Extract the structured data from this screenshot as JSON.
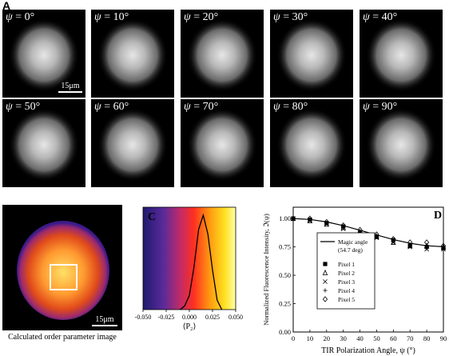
{
  "figure": {
    "panel_a": {
      "label": "A",
      "psi_symbol": "ψ",
      "angles": [
        "0°",
        "10°",
        "20°",
        "30°",
        "40°",
        "50°",
        "60°",
        "70°",
        "80°",
        "90°"
      ],
      "scale_bar": "15μm"
    },
    "panel_b": {
      "label": "B",
      "caption": "Calculated order parameter image",
      "scale_bar": "15μm"
    },
    "panel_c": {
      "label": "C",
      "xlabel": "⟨P₂⟩",
      "xticks": [
        "-0.050",
        "-0.025",
        "0.000",
        "0.025",
        "0.050"
      ]
    },
    "panel_d": {
      "label": "D",
      "xlabel": "TIR Polarization Angle, ψ (°)",
      "ylabel": "Normalized Fluorescence Intensity, ℑ(ψ)",
      "legend": {
        "line_label": "Magic angle",
        "line_label_2": "(54.7 deg)",
        "pixels": [
          "Pixel 1",
          "Pixel 2",
          "Pixel 3",
          "Pixel 4",
          "Pixel 5"
        ]
      }
    }
  },
  "chart_data": [
    {
      "type": "line",
      "panel": "C",
      "xlabel": "⟨P₂⟩",
      "xlim": [
        -0.05,
        0.05
      ],
      "xticks": [
        -0.05,
        -0.025,
        0.0,
        0.025,
        0.05
      ],
      "x": [
        -0.01,
        -0.005,
        0.0,
        0.005,
        0.01,
        0.015,
        0.02,
        0.025,
        0.03,
        0.035
      ],
      "values": [
        0.0,
        0.04,
        0.15,
        0.45,
        0.85,
        1.0,
        0.8,
        0.42,
        0.1,
        0.0
      ]
    },
    {
      "type": "scatter",
      "panel": "D",
      "xlabel": "TIR Polarization Angle, ψ (°)",
      "ylabel": "Normalized Fluorescence Intensity, ℑ(ψ)",
      "xlim": [
        0,
        90
      ],
      "ylim": [
        0.0,
        1.1
      ],
      "xticks": [
        0,
        10,
        20,
        30,
        40,
        50,
        60,
        70,
        80,
        90
      ],
      "yticks": [
        0.0,
        0.25,
        0.5,
        0.75,
        1.0
      ],
      "line": {
        "name": "Magic angle",
        "x": [
          0,
          10,
          20,
          30,
          40,
          50,
          60,
          70,
          80,
          90
        ],
        "y": [
          1.0,
          0.992,
          0.97,
          0.937,
          0.897,
          0.855,
          0.815,
          0.782,
          0.76,
          0.752
        ]
      },
      "series": [
        {
          "name": "Pixel 1",
          "marker": "square-filled",
          "x": [
            0,
            10,
            20,
            30,
            40,
            50,
            60,
            70,
            80,
            90
          ],
          "y": [
            1.0,
            0.99,
            0.96,
            0.93,
            0.87,
            0.84,
            0.81,
            0.76,
            0.75,
            0.74
          ]
        },
        {
          "name": "Pixel 2",
          "marker": "triangle-open",
          "x": [
            0,
            10,
            20,
            30,
            40,
            50,
            60,
            70,
            80,
            90
          ],
          "y": [
            1.0,
            0.98,
            0.95,
            0.92,
            0.88,
            0.84,
            0.79,
            0.76,
            0.76,
            0.75
          ]
        },
        {
          "name": "Pixel 3",
          "marker": "x",
          "x": [
            0,
            10,
            20,
            30,
            40,
            50,
            60,
            70,
            80,
            90
          ],
          "y": [
            1.0,
            0.98,
            0.95,
            0.91,
            0.87,
            0.83,
            0.79,
            0.75,
            0.73,
            0.73
          ]
        },
        {
          "name": "Pixel 4",
          "marker": "plus",
          "x": [
            0,
            10,
            20,
            30,
            40,
            50,
            60,
            70,
            80,
            90
          ],
          "y": [
            1.0,
            0.99,
            0.96,
            0.92,
            0.88,
            0.85,
            0.8,
            0.77,
            0.74,
            0.73
          ]
        },
        {
          "name": "Pixel 5",
          "marker": "diamond-open",
          "x": [
            0,
            10,
            20,
            30,
            40,
            50,
            60,
            70,
            80,
            90
          ],
          "y": [
            1.0,
            1.0,
            0.97,
            0.94,
            0.9,
            0.86,
            0.82,
            0.79,
            0.79,
            0.76
          ]
        }
      ]
    }
  ]
}
